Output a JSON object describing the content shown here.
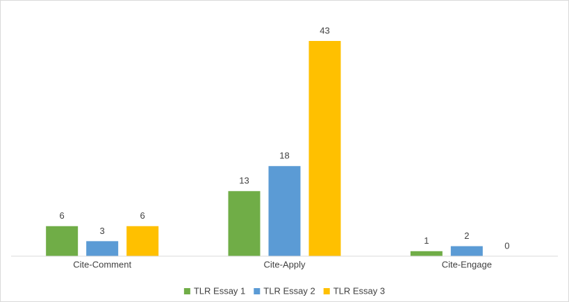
{
  "chart_data": {
    "type": "bar",
    "categories": [
      "Cite-Comment",
      "Cite-Apply",
      "Cite-Engage"
    ],
    "series": [
      {
        "name": "TLR Essay 1",
        "color": "#70ad47",
        "values": [
          6,
          13,
          1
        ]
      },
      {
        "name": "TLR Essay 2",
        "color": "#5b9bd5",
        "values": [
          3,
          18,
          2
        ]
      },
      {
        "name": "TLR Essay 3",
        "color": "#ffc000",
        "values": [
          6,
          43,
          0
        ]
      }
    ],
    "legend": "bottom"
  }
}
